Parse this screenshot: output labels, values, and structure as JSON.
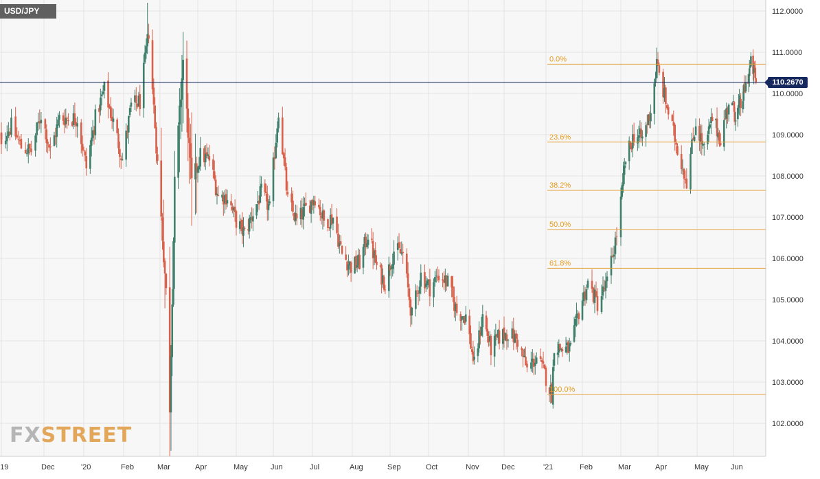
{
  "chart_data": {
    "type": "candlestick",
    "symbol": "USD/JPY",
    "last_price": "110.2670",
    "y_axis": {
      "range": [
        101.2,
        112.25
      ],
      "ticks": [
        "112.0000",
        "111.0000",
        "110.0000",
        "109.0000",
        "108.0000",
        "107.0000",
        "106.0000",
        "105.0000",
        "104.0000",
        "103.0000",
        "102.0000"
      ]
    },
    "x_axis_labels": [
      "'19",
      "Dec",
      "'20",
      "Feb",
      "Mar",
      "Apr",
      "May",
      "Jun",
      "Jul",
      "Aug",
      "Sep",
      "Oct",
      "Nov",
      "Dec",
      "'21",
      "Feb",
      "Mar",
      "Apr",
      "May",
      "Jun"
    ],
    "fibonacci": {
      "high": 110.71,
      "low": 102.7,
      "levels": [
        {
          "label": "0.0%",
          "value": 110.71
        },
        {
          "label": "23.6%",
          "value": 108.82
        },
        {
          "label": "38.2%",
          "value": 107.65
        },
        {
          "label": "50.0%",
          "value": 106.7
        },
        {
          "label": "61.8%",
          "value": 105.76
        },
        {
          "label": "100.0%",
          "value": 102.7
        }
      ]
    },
    "price_path": [
      [
        "2019-11-01",
        108.9
      ],
      [
        "2019-11-08",
        109.2
      ],
      [
        "2019-11-15",
        108.7
      ],
      [
        "2019-11-22",
        108.6
      ],
      [
        "2019-11-29",
        109.5
      ],
      [
        "2019-12-06",
        108.6
      ],
      [
        "2019-12-13",
        109.4
      ],
      [
        "2019-12-20",
        109.4
      ],
      [
        "2019-12-27",
        109.4
      ],
      [
        "2020-01-03",
        108.2
      ],
      [
        "2020-01-10",
        109.4
      ],
      [
        "2020-01-17",
        110.1
      ],
      [
        "2020-01-24",
        109.3
      ],
      [
        "2020-01-31",
        108.4
      ],
      [
        "2020-02-07",
        109.7
      ],
      [
        "2020-02-14",
        109.8
      ],
      [
        "2020-02-21",
        111.5
      ],
      [
        "2020-02-28",
        108.3
      ],
      [
        "2020-03-06",
        105.2
      ],
      [
        "2020-03-09",
        102.4
      ],
      [
        "2020-03-13",
        107.8
      ],
      [
        "2020-03-20",
        110.8
      ],
      [
        "2020-03-27",
        107.8
      ],
      [
        "2020-04-03",
        108.5
      ],
      [
        "2020-04-10",
        108.4
      ],
      [
        "2020-04-17",
        107.5
      ],
      [
        "2020-04-24",
        107.5
      ],
      [
        "2020-05-01",
        106.9
      ],
      [
        "2020-05-08",
        106.6
      ],
      [
        "2020-05-15",
        107.1
      ],
      [
        "2020-05-22",
        107.6
      ],
      [
        "2020-05-29",
        107.2
      ],
      [
        "2020-06-05",
        109.6
      ],
      [
        "2020-06-12",
        107.4
      ],
      [
        "2020-06-19",
        106.9
      ],
      [
        "2020-06-26",
        107.2
      ],
      [
        "2020-07-03",
        107.5
      ],
      [
        "2020-07-10",
        106.9
      ],
      [
        "2020-07-17",
        107.0
      ],
      [
        "2020-07-24",
        106.1
      ],
      [
        "2020-07-31",
        105.8
      ],
      [
        "2020-08-07",
        105.9
      ],
      [
        "2020-08-14",
        106.6
      ],
      [
        "2020-08-21",
        105.8
      ],
      [
        "2020-08-28",
        105.4
      ],
      [
        "2020-09-04",
        106.2
      ],
      [
        "2020-09-11",
        106.1
      ],
      [
        "2020-09-18",
        104.6
      ],
      [
        "2020-09-25",
        105.6
      ],
      [
        "2020-10-02",
        105.3
      ],
      [
        "2020-10-09",
        105.6
      ],
      [
        "2020-10-16",
        105.4
      ],
      [
        "2020-10-23",
        104.7
      ],
      [
        "2020-10-30",
        104.6
      ],
      [
        "2020-11-06",
        103.4
      ],
      [
        "2020-11-13",
        104.6
      ],
      [
        "2020-11-20",
        103.8
      ],
      [
        "2020-11-27",
        104.1
      ],
      [
        "2020-12-04",
        104.2
      ],
      [
        "2020-12-11",
        104.0
      ],
      [
        "2020-12-18",
        103.3
      ],
      [
        "2020-12-25",
        103.6
      ],
      [
        "2020-12-31",
        103.2
      ],
      [
        "2021-01-06",
        102.7
      ],
      [
        "2021-01-08",
        103.9
      ],
      [
        "2021-01-15",
        103.8
      ],
      [
        "2021-01-22",
        103.8
      ],
      [
        "2021-01-29",
        104.7
      ],
      [
        "2021-02-05",
        105.4
      ],
      [
        "2021-02-12",
        104.9
      ],
      [
        "2021-02-19",
        105.4
      ],
      [
        "2021-02-26",
        106.6
      ],
      [
        "2021-03-05",
        108.4
      ],
      [
        "2021-03-12",
        109.0
      ],
      [
        "2021-03-19",
        108.9
      ],
      [
        "2021-03-26",
        109.6
      ],
      [
        "2021-03-31",
        110.7
      ],
      [
        "2021-04-07",
        109.8
      ],
      [
        "2021-04-14",
        108.9
      ],
      [
        "2021-04-21",
        108.1
      ],
      [
        "2021-04-23",
        107.9
      ],
      [
        "2021-04-30",
        109.3
      ],
      [
        "2021-05-07",
        108.6
      ],
      [
        "2021-05-14",
        109.4
      ],
      [
        "2021-05-21",
        108.9
      ],
      [
        "2021-05-28",
        109.8
      ],
      [
        "2021-06-04",
        109.5
      ],
      [
        "2021-06-11",
        109.7
      ],
      [
        "2021-06-18",
        110.2
      ],
      [
        "2021-06-25",
        110.7
      ],
      [
        "2021-06-30",
        110.5
      ],
      [
        "2021-07-02",
        110.27
      ]
    ]
  },
  "colors": {
    "bull": "#3f7f6b",
    "bear": "#d9604a",
    "fib": "#e6a23c",
    "last_price": "#16295e"
  },
  "brand": {
    "fx": "FX",
    "street": "STREET"
  }
}
